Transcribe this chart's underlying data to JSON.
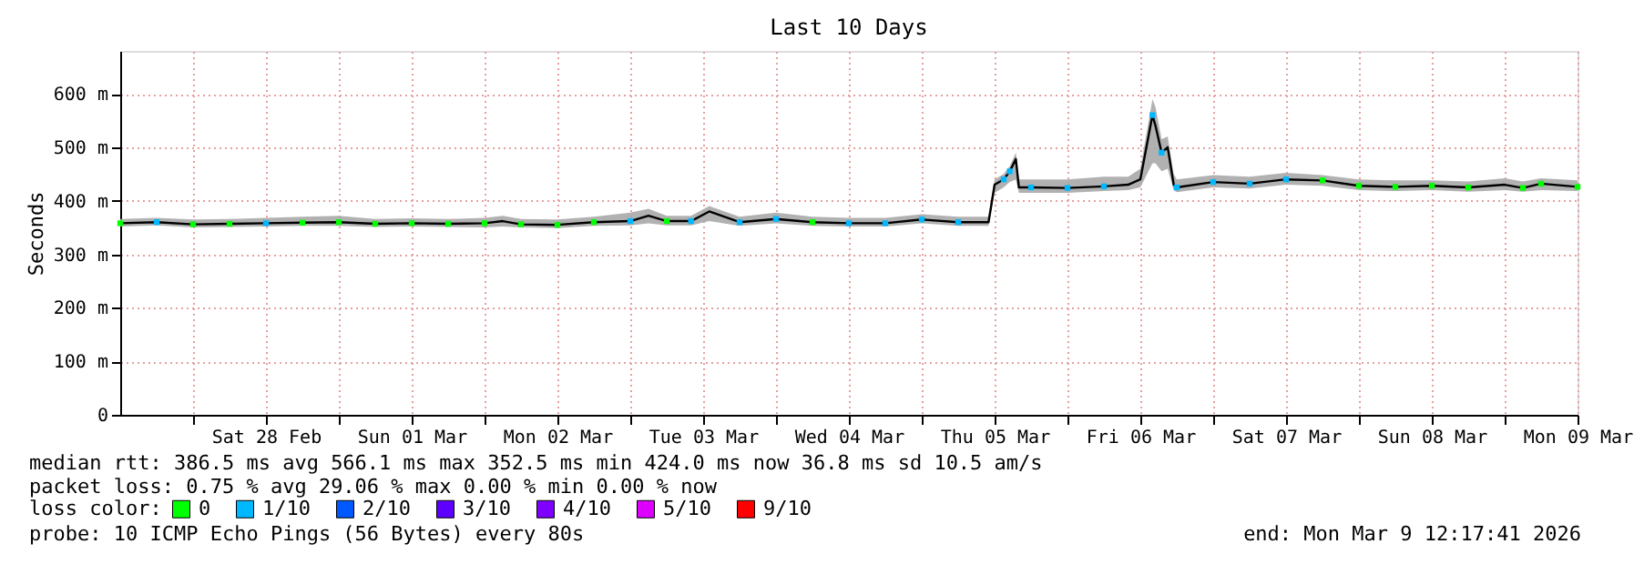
{
  "chart_data": {
    "type": "line",
    "title": "Last 10 Days",
    "ylabel": "Seconds",
    "legend_title": "loss color:",
    "legend": "bottom",
    "grid": true,
    "line_style": "solid",
    "xlim": [
      "2026-02-27T12:00",
      "2026-03-09T12:00"
    ],
    "xticks": [
      {
        "value": "2026-02-28T00:00",
        "label": null
      },
      {
        "value": "2026-02-28T12:00",
        "label": "Sat 28 Feb"
      },
      {
        "value": "2026-03-01T00:00",
        "label": null
      },
      {
        "value": "2026-03-01T12:00",
        "label": "Sun 01 Mar"
      },
      {
        "value": "2026-03-02T00:00",
        "label": null
      },
      {
        "value": "2026-03-02T12:00",
        "label": "Mon 02 Mar"
      },
      {
        "value": "2026-03-03T00:00",
        "label": null
      },
      {
        "value": "2026-03-03T12:00",
        "label": "Tue 03 Mar"
      },
      {
        "value": "2026-03-04T00:00",
        "label": null
      },
      {
        "value": "2026-03-04T12:00",
        "label": "Wed 04 Mar"
      },
      {
        "value": "2026-03-05T00:00",
        "label": null
      },
      {
        "value": "2026-03-05T12:00",
        "label": "Thu 05 Mar"
      },
      {
        "value": "2026-03-06T00:00",
        "label": null
      },
      {
        "value": "2026-03-06T12:00",
        "label": "Fri 06 Mar"
      },
      {
        "value": "2026-03-07T00:00",
        "label": null
      },
      {
        "value": "2026-03-07T12:00",
        "label": "Sat 07 Mar"
      },
      {
        "value": "2026-03-08T00:00",
        "label": null
      },
      {
        "value": "2026-03-08T12:00",
        "label": "Sun 08 Mar"
      },
      {
        "value": "2026-03-09T00:00",
        "label": null
      },
      {
        "value": "2026-03-09T12:00",
        "label": "Mon 09 Mar"
      }
    ],
    "ylim": [
      0,
      680
    ],
    "yticks": [
      0,
      {
        "value": 100,
        "label": "100 m"
      },
      {
        "value": 200,
        "label": "200 m"
      },
      {
        "value": 300,
        "label": "300 m"
      },
      {
        "value": 400,
        "label": "400 m"
      },
      {
        "value": 500,
        "label": "500 m"
      },
      {
        "value": 600,
        "label": "600 m"
      }
    ],
    "series": [
      {
        "color": "#000000",
        "x": [
          "2026-02-27T12:00",
          "2026-02-27T18:00",
          "2026-02-28T00:00",
          "2026-02-28T06:00",
          "2026-02-28T12:00",
          "2026-02-28T18:00",
          "2026-03-01T00:00",
          "2026-03-01T06:00",
          "2026-03-01T12:00",
          "2026-03-01T18:00",
          "2026-03-02T00:00",
          "2026-03-02T03:00",
          "2026-03-02T06:00",
          "2026-03-02T12:00",
          "2026-03-02T18:00",
          "2026-03-03T00:00",
          "2026-03-03T03:00",
          "2026-03-03T06:00",
          "2026-03-03T10:00",
          "2026-03-03T13:00",
          "2026-03-03T18:00",
          "2026-03-04T00:00",
          "2026-03-04T06:00",
          "2026-03-04T12:00",
          "2026-03-04T18:00",
          "2026-03-05T00:00",
          "2026-03-05T06:00",
          "2026-03-05T11:00",
          "2026-03-05T12:00",
          "2026-03-05T13:30",
          "2026-03-05T14:30",
          "2026-03-05T15:30",
          "2026-03-05T16:00",
          "2026-03-05T18:00",
          "2026-03-06T00:00",
          "2026-03-06T06:00",
          "2026-03-06T10:00",
          "2026-03-06T12:00",
          "2026-03-06T14:00",
          "2026-03-06T14:30",
          "2026-03-06T15:30",
          "2026-03-06T16:30",
          "2026-03-06T17:30",
          "2026-03-06T18:00",
          "2026-03-07T00:00",
          "2026-03-07T06:00",
          "2026-03-07T12:00",
          "2026-03-07T18:00",
          "2026-03-08T00:00",
          "2026-03-08T06:00",
          "2026-03-08T12:00",
          "2026-03-08T18:00",
          "2026-03-09T00:00",
          "2026-03-09T03:00",
          "2026-03-09T06:00",
          "2026-03-09T12:00"
        ],
        "values": [
          358,
          360,
          356,
          357,
          358,
          359,
          360,
          357,
          358,
          357,
          358,
          362,
          356,
          355,
          360,
          362,
          372,
          362,
          362,
          380,
          360,
          366,
          360,
          358,
          358,
          365,
          360,
          360,
          430,
          440,
          455,
          478,
          425,
          425,
          424,
          427,
          430,
          440,
          560,
          540,
          490,
          500,
          430,
          425,
          435,
          432,
          440,
          438,
          428,
          426,
          428,
          425,
          430,
          424,
          432,
          426
        ],
        "lower": [
          352,
          354,
          350,
          351,
          352,
          353,
          353,
          351,
          352,
          351,
          350,
          352,
          350,
          349,
          353,
          354,
          358,
          354,
          354,
          362,
          353,
          358,
          353,
          352,
          352,
          358,
          353,
          353,
          415,
          425,
          435,
          440,
          415,
          415,
          415,
          418,
          420,
          425,
          470,
          470,
          455,
          460,
          420,
          416,
          425,
          423,
          430,
          428,
          420,
          418,
          420,
          417,
          420,
          417,
          420,
          418
        ],
        "upper": [
          366,
          368,
          365,
          366,
          368,
          370,
          372,
          366,
          367,
          366,
          368,
          372,
          366,
          365,
          370,
          378,
          385,
          372,
          372,
          390,
          370,
          378,
          370,
          368,
          368,
          375,
          370,
          370,
          440,
          450,
          465,
          490,
          440,
          440,
          440,
          445,
          445,
          460,
          590,
          575,
          515,
          520,
          450,
          440,
          448,
          445,
          452,
          448,
          440,
          438,
          438,
          436,
          442,
          436,
          442,
          438
        ]
      },
      {
        "type": "scatter",
        "name": "0",
        "color": "#00ff00",
        "marker": "square",
        "x": [
          "2026-02-27T12:00",
          "2026-02-28T00:00",
          "2026-02-28T06:00",
          "2026-02-28T18:00",
          "2026-03-01T00:00",
          "2026-03-01T06:00",
          "2026-03-01T12:00",
          "2026-03-01T18:00",
          "2026-03-02T00:00",
          "2026-03-02T06:00",
          "2026-03-02T12:00",
          "2026-03-02T18:00",
          "2026-03-03T06:00",
          "2026-03-04T06:00",
          "2026-03-07T18:00",
          "2026-03-08T00:00",
          "2026-03-08T06:00",
          "2026-03-08T12:00",
          "2026-03-08T18:00",
          "2026-03-09T03:00",
          "2026-03-09T06:00",
          "2026-03-09T12:00"
        ],
        "values": [
          358,
          356,
          357,
          359,
          360,
          357,
          358,
          357,
          358,
          356,
          355,
          360,
          362,
          360,
          438,
          428,
          426,
          428,
          425,
          424,
          432,
          426
        ]
      },
      {
        "type": "scatter",
        "name": "1/10",
        "color": "#00b8ff",
        "marker": "square",
        "x": [
          "2026-02-27T18:00",
          "2026-02-28T12:00",
          "2026-03-03T00:00",
          "2026-03-03T10:00",
          "2026-03-03T18:00",
          "2026-03-04T00:00",
          "2026-03-04T12:00",
          "2026-03-04T18:00",
          "2026-03-05T00:00",
          "2026-03-05T06:00",
          "2026-03-05T13:30",
          "2026-03-05T14:30",
          "2026-03-05T18:00",
          "2026-03-06T00:00",
          "2026-03-06T06:00",
          "2026-03-06T14:00",
          "2026-03-06T15:30",
          "2026-03-06T18:00",
          "2026-03-07T00:00",
          "2026-03-07T06:00",
          "2026-03-07T12:00"
        ],
        "values": [
          360,
          358,
          362,
          362,
          360,
          366,
          358,
          358,
          365,
          360,
          440,
          455,
          425,
          424,
          427,
          560,
          490,
          425,
          435,
          432,
          440
        ]
      },
      {
        "type": "scatter",
        "name": "2/10",
        "color": "#0059ff"
      },
      {
        "type": "scatter",
        "name": "3/10",
        "color": "#5e00ff"
      },
      {
        "type": "scatter",
        "name": "4/10",
        "color": "#7e00ff"
      },
      {
        "type": "scatter",
        "name": "5/10",
        "color": "#dd00ff"
      },
      {
        "type": "scatter",
        "name": "9/10",
        "color": "#ff0000"
      }
    ],
    "annotations": [
      "median rtt:  386.5 ms avg  566.1 ms max  352.5 ms min  424.0 ms now  36.8 ms sd  10.5   am/s",
      "packet loss: 0.75 % avg  29.06 % max  0.00 % min  0.00 % now",
      "probe:       10 ICMP Echo Pings (56 Bytes) every 80s",
      "end: Mon Mar  9 12:17:41 2026"
    ]
  }
}
